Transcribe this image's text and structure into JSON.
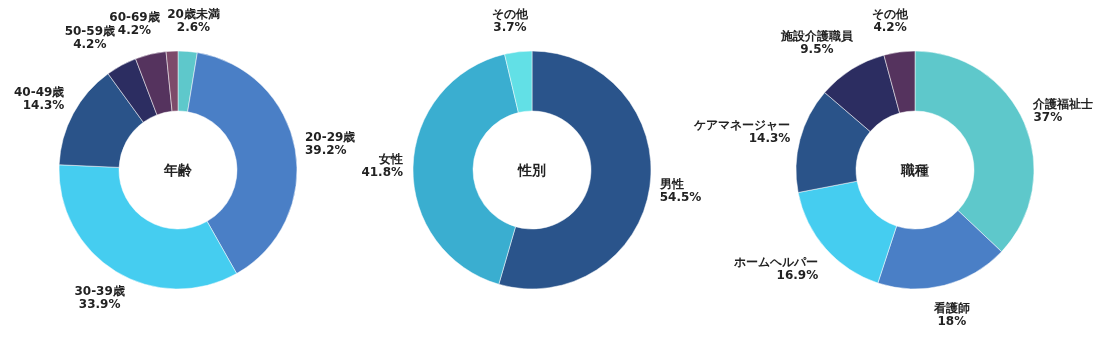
{
  "chart_data": [
    {
      "type": "donut",
      "title": "年齢",
      "categories": [
        "20歳未満",
        "20-29歳",
        "30-39歳",
        "40-49歳",
        "50-59歳",
        "60-69歳",
        null
      ],
      "values": [
        2.6,
        39.2,
        33.9,
        14.3,
        4.2,
        4.2,
        1.6
      ],
      "colors": [
        "#5ec8cb",
        "#4a7fc6",
        "#45cdf0",
        "#2a5389",
        "#2c2d61",
        "#55335e",
        "#7d4a6a"
      ],
      "value_labels": [
        "2.6%",
        "39.2%",
        "33.9%",
        "14.3%",
        "4.2%",
        "4.2%",
        null
      ]
    },
    {
      "type": "donut",
      "title": "性別",
      "categories": [
        "男性",
        "女性",
        "その他"
      ],
      "values": [
        54.5,
        41.8,
        3.7
      ],
      "colors": [
        "#2a548b",
        "#3aaed0",
        "#62e0e6"
      ],
      "value_labels": [
        "54.5%",
        "41.8%",
        "3.7%"
      ]
    },
    {
      "type": "donut",
      "title": "職種",
      "categories": [
        "介護福祉士",
        "看護師",
        "ホームヘルパー",
        "ケアマネージャー",
        "施設介護職員",
        "その他"
      ],
      "values": [
        37,
        18,
        16.9,
        14.3,
        9.5,
        4.2
      ],
      "colors": [
        "#5ec8cb",
        "#4a7fc6",
        "#45cdf0",
        "#2a5389",
        "#2c2d61",
        "#55335e"
      ],
      "value_labels": [
        "37%",
        "18%",
        "16.9%",
        "14.3%",
        "9.5%",
        "4.2%"
      ]
    }
  ]
}
